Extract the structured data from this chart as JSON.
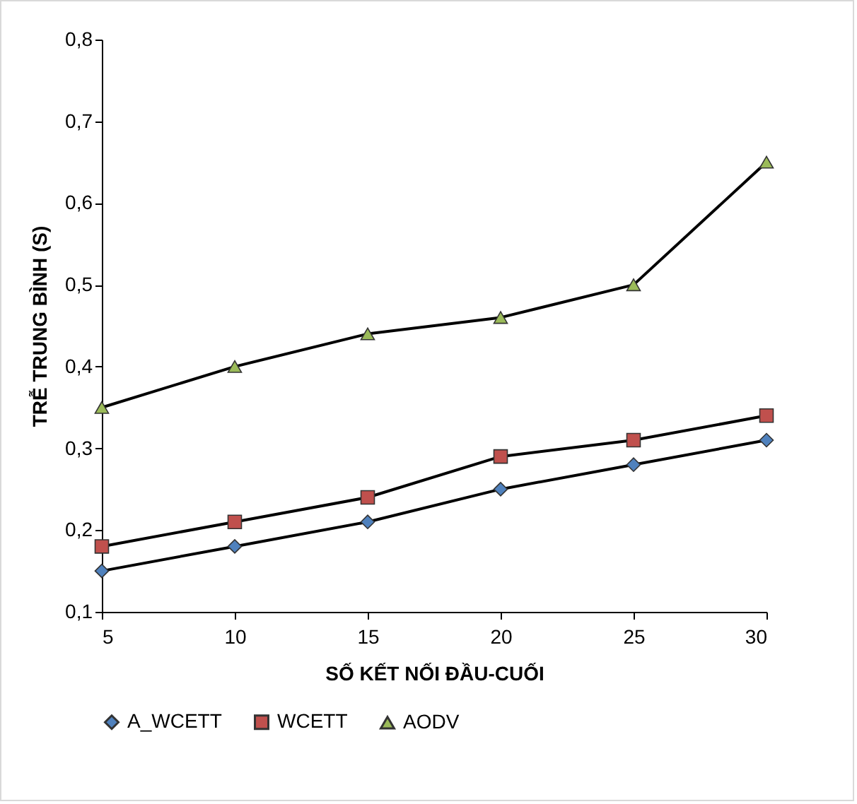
{
  "chart_data": {
    "type": "line",
    "xlabel": "SỐ KẾT NỐI ĐẦU-CUỐI",
    "ylabel": "TRỄ TRUNG BÌNH (S)",
    "x": [
      5,
      10,
      15,
      20,
      25,
      30
    ],
    "series": [
      {
        "name": "A_WCETT",
        "color": "#4f81bd",
        "marker": "diamond",
        "values": [
          0.15,
          0.18,
          0.21,
          0.25,
          0.28,
          0.31
        ]
      },
      {
        "name": "WCETT",
        "color": "#c0504d",
        "marker": "square",
        "values": [
          0.18,
          0.21,
          0.24,
          0.29,
          0.31,
          0.34
        ]
      },
      {
        "name": "AODV",
        "color": "#9bbb59",
        "marker": "triangle",
        "values": [
          0.35,
          0.4,
          0.44,
          0.46,
          0.5,
          0.65
        ]
      }
    ],
    "xlim": [
      5,
      30
    ],
    "xticks": [
      5,
      10,
      15,
      20,
      25,
      30
    ],
    "ylim": [
      0.1,
      0.8
    ],
    "yticks": [
      {
        "value": 0.1,
        "label": "0,1"
      },
      {
        "value": 0.2,
        "label": "0,2"
      },
      {
        "value": 0.3,
        "label": "0,3"
      },
      {
        "value": 0.4,
        "label": "0,4"
      },
      {
        "value": 0.5,
        "label": "0,5"
      },
      {
        "value": 0.6,
        "label": "0,6"
      },
      {
        "value": 0.7,
        "label": "0,7"
      },
      {
        "value": 0.8,
        "label": "0,8"
      }
    ],
    "grid": false,
    "legend": "bottom",
    "line_style": "solid"
  }
}
